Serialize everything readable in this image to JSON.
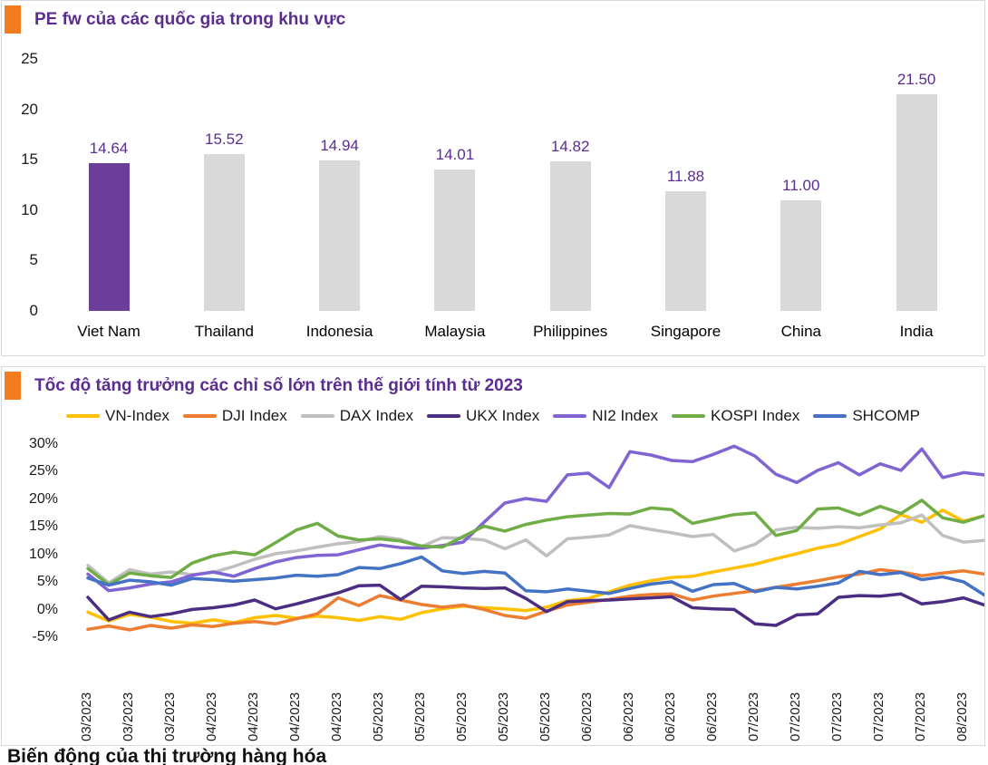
{
  "colors": {
    "accent_orange": "#F47B20",
    "title_purple": "#5C2D91",
    "panel_border": "#D9D9D9",
    "bar_highlight": "#6B3E99",
    "bar_default": "#D9D9D9",
    "value_label_purple": "#5C2D91",
    "axis_text": "#1A1A1A"
  },
  "bar_panel": {
    "title": "PE fw của các quốc gia trong khu vực"
  },
  "line_panel": {
    "title": "Tốc độ tăng trưởng các chỉ số lớn trên thế giới tính từ 2023"
  },
  "footer": {
    "heading": "Biến động của thị trường hàng hóa"
  },
  "chart_data": [
    {
      "type": "bar",
      "title": "PE fw của các quốc gia trong khu vực",
      "categories": [
        "Viet Nam",
        "Thailand",
        "Indonesia",
        "Malaysia",
        "Philippines",
        "Singapore",
        "China",
        "India"
      ],
      "values": [
        14.64,
        15.52,
        14.94,
        14.01,
        14.82,
        11.88,
        11.0,
        21.5
      ],
      "value_labels": [
        "14.64",
        "15.52",
        "14.94",
        "14.01",
        "14.82",
        "11.88",
        "11.00",
        "21.50"
      ],
      "highlight_index": 0,
      "highlight_color": "#6B3E99",
      "bar_color": "#D9D9D9",
      "ylim": [
        0,
        25
      ],
      "yticks": [
        0,
        5,
        10,
        15,
        20,
        25
      ],
      "grid": false,
      "legend": false
    },
    {
      "type": "line",
      "title": "Tốc độ tăng trưởng các chỉ số lớn trên thế giới tính từ 2023",
      "ylim": [
        -5,
        30
      ],
      "ytick_labels": [
        "30%",
        "25%",
        "20%",
        "15%",
        "10%",
        "5%",
        "0%",
        "-5%"
      ],
      "yticks": [
        30,
        25,
        20,
        15,
        10,
        5,
        0,
        -5
      ],
      "grid": false,
      "legend_position": "top",
      "x_tick_labels": [
        "03/2023",
        "03/2023",
        "03/2023",
        "04/2023",
        "04/2023",
        "04/2023",
        "04/2023",
        "05/2023",
        "05/2023",
        "05/2023",
        "05/2023",
        "05/2023",
        "06/2023",
        "06/2023",
        "06/2023",
        "06/2023",
        "07/2023",
        "07/2023",
        "07/2023",
        "07/2023",
        "07/2023",
        "08/2023"
      ],
      "series": [
        {
          "name": "VN-Index",
          "color": "#FFC000",
          "values": [
            -0.3,
            -1.9,
            -0.7,
            -1.2,
            -2.0,
            -2.3,
            -1.7,
            -2.2,
            -1.3,
            -0.9,
            -1.4,
            -1.0,
            -1.3,
            -1.8,
            -1.1,
            -1.6,
            -0.4,
            0.3,
            0.8,
            0.5,
            0.3,
            0.0,
            0.6,
            1.8,
            2.2,
            3.4,
            4.6,
            5.4,
            6.0,
            6.2,
            7.0,
            7.7,
            8.4,
            9.4,
            10.3,
            11.3,
            12.0,
            13.4,
            14.8,
            17.4,
            16.0,
            18.2,
            16.2,
            17.2
          ]
        },
        {
          "name": "DJI Index",
          "color": "#ED7D31",
          "values": [
            -3.4,
            -2.8,
            -3.5,
            -2.7,
            -3.2,
            -2.6,
            -2.9,
            -2.3,
            -2.0,
            -2.4,
            -1.5,
            -0.6,
            2.3,
            0.9,
            2.7,
            1.9,
            1.1,
            0.6,
            1.0,
            0.2,
            -0.9,
            -1.4,
            -0.1,
            1.0,
            1.5,
            2.0,
            2.6,
            2.9,
            3.0,
            1.9,
            2.6,
            3.1,
            3.6,
            4.2,
            4.8,
            5.4,
            6.1,
            6.6,
            7.4,
            7.0,
            6.3,
            6.8,
            7.2,
            6.6
          ]
        },
        {
          "name": "DAX Index",
          "color": "#BFBFBF",
          "values": [
            8.2,
            5.0,
            7.4,
            6.6,
            7.0,
            6.5,
            6.9,
            8.0,
            9.3,
            10.3,
            10.8,
            11.5,
            12.1,
            12.5,
            13.4,
            12.9,
            11.6,
            13.2,
            13.1,
            12.8,
            11.2,
            12.8,
            9.9,
            13.0,
            13.3,
            13.7,
            15.4,
            14.7,
            14.1,
            13.4,
            13.8,
            10.8,
            12.0,
            14.6,
            15.1,
            14.9,
            15.2,
            15.0,
            15.5,
            15.9,
            17.3,
            13.6,
            12.4,
            12.7
          ]
        },
        {
          "name": "UKX Index",
          "color": "#4B2E83",
          "values": [
            2.4,
            -1.7,
            -0.3,
            -1.1,
            -0.6,
            0.2,
            0.5,
            1.0,
            1.9,
            0.3,
            1.2,
            2.2,
            3.2,
            4.5,
            4.6,
            2.0,
            4.4,
            4.3,
            4.1,
            4.0,
            4.1,
            2.2,
            -0.2,
            1.6,
            1.8,
            1.9,
            2.1,
            2.3,
            2.5,
            0.5,
            0.3,
            0.2,
            -2.4,
            -2.7,
            -0.8,
            -0.6,
            2.4,
            2.7,
            2.6,
            3.0,
            1.2,
            1.6,
            2.3,
            1.0
          ]
        },
        {
          "name": "NI2 Index",
          "color": "#8064D2",
          "values": [
            6.6,
            3.6,
            4.1,
            4.8,
            5.2,
            6.4,
            7.0,
            6.2,
            7.6,
            8.8,
            9.6,
            10.0,
            10.1,
            11.0,
            11.9,
            11.4,
            11.3,
            11.8,
            12.4,
            16.0,
            19.5,
            20.3,
            19.8,
            24.6,
            24.9,
            22.3,
            28.8,
            28.2,
            27.2,
            27.0,
            28.3,
            29.8,
            28.0,
            24.7,
            23.2,
            25.4,
            26.8,
            24.6,
            26.6,
            25.4,
            29.3,
            24.1,
            25.0,
            24.6
          ]
        },
        {
          "name": "KOSPI Index",
          "color": "#70AD47",
          "values": [
            7.6,
            4.7,
            6.8,
            6.3,
            6.0,
            8.6,
            9.9,
            10.6,
            10.1,
            12.3,
            14.6,
            15.8,
            13.5,
            12.8,
            13.0,
            12.6,
            11.7,
            11.5,
            13.4,
            15.3,
            14.4,
            15.6,
            16.4,
            17.0,
            17.3,
            17.6,
            17.5,
            18.6,
            18.3,
            15.8,
            16.6,
            17.4,
            17.7,
            13.6,
            14.5,
            18.4,
            18.6,
            17.3,
            18.9,
            17.6,
            20.0,
            16.8,
            16.0,
            17.2
          ]
        },
        {
          "name": "SHCOMP",
          "color": "#4472C4",
          "values": [
            5.9,
            4.6,
            5.5,
            5.2,
            4.6,
            5.8,
            5.6,
            5.3,
            5.6,
            5.9,
            6.4,
            6.2,
            6.5,
            7.8,
            7.6,
            8.5,
            9.7,
            7.2,
            6.7,
            7.1,
            6.8,
            3.6,
            3.4,
            3.9,
            3.5,
            3.1,
            4.0,
            4.8,
            5.2,
            3.5,
            4.7,
            4.9,
            3.4,
            4.2,
            3.9,
            4.4,
            5.0,
            7.1,
            6.5,
            6.9,
            5.6,
            6.1,
            5.2,
            2.8
          ]
        }
      ]
    }
  ]
}
